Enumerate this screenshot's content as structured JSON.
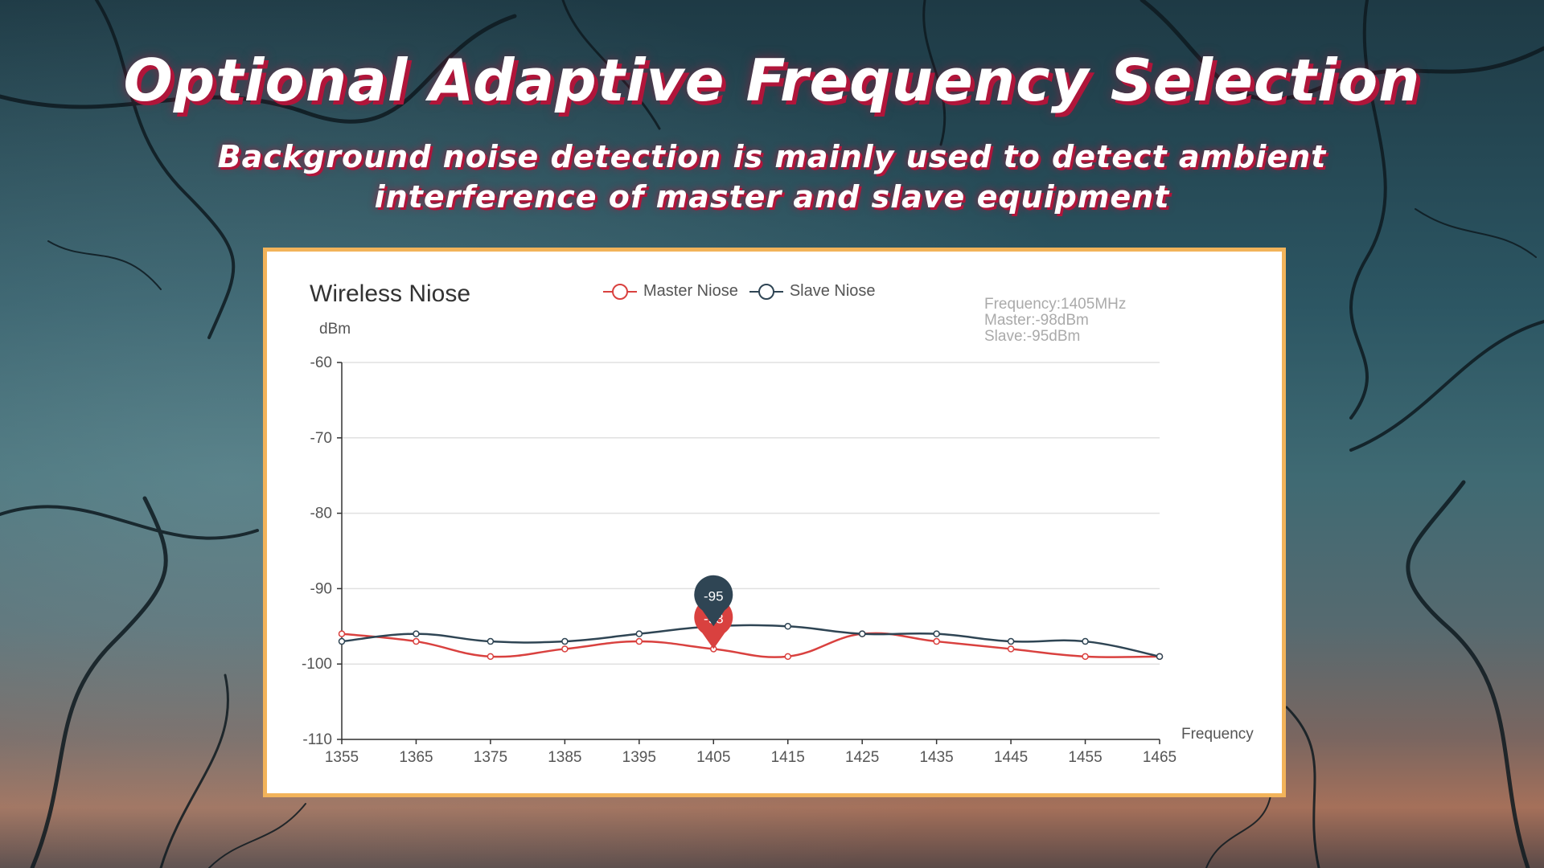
{
  "page": {
    "headline": "Optional Adaptive Frequency Selection",
    "subline_1": "Background noise detection is mainly used to detect ambient",
    "subline_2": "interference of master and slave equipment"
  },
  "colors": {
    "headline_shadow": "#b0153a",
    "panel_border": "#f2b35a",
    "master": "#d9413f",
    "slave": "#2f4554"
  },
  "chart_data": {
    "type": "line",
    "title": "Wireless Niose",
    "ylabel": "dBm",
    "xlabel": "Frequency",
    "x": [
      1355,
      1365,
      1375,
      1385,
      1395,
      1405,
      1415,
      1425,
      1435,
      1445,
      1455,
      1465
    ],
    "x_ticks": [
      1355,
      1365,
      1375,
      1385,
      1395,
      1405,
      1415,
      1425,
      1435,
      1445,
      1455,
      1465
    ],
    "y_ticks": [
      -60,
      -70,
      -80,
      -90,
      -100,
      -110
    ],
    "ylim": [
      -110,
      -60
    ],
    "xlim": [
      1355,
      1465
    ],
    "grid": "horizontal",
    "legend_position": "top-center",
    "smooth": true,
    "series": [
      {
        "name": "Master Niose",
        "color": "#d9413f",
        "values": [
          -96,
          -97,
          -99,
          -98,
          -97,
          -98,
          -99,
          -96,
          -97,
          -98,
          -99,
          -99
        ]
      },
      {
        "name": "Slave Niose",
        "color": "#2f4554",
        "values": [
          -97,
          -96,
          -97,
          -97,
          -96,
          -95,
          -95,
          -96,
          -96,
          -97,
          -97,
          -99
        ]
      }
    ],
    "tooltip": {
      "lines": [
        "Frequency:1405MHz",
        "Master:-98dBm",
        "Slave:-95dBm"
      ]
    },
    "markers": [
      {
        "series": "Master Niose",
        "x": 1405,
        "label": "-98"
      },
      {
        "series": "Slave Niose",
        "x": 1405,
        "label": "-95"
      }
    ]
  }
}
